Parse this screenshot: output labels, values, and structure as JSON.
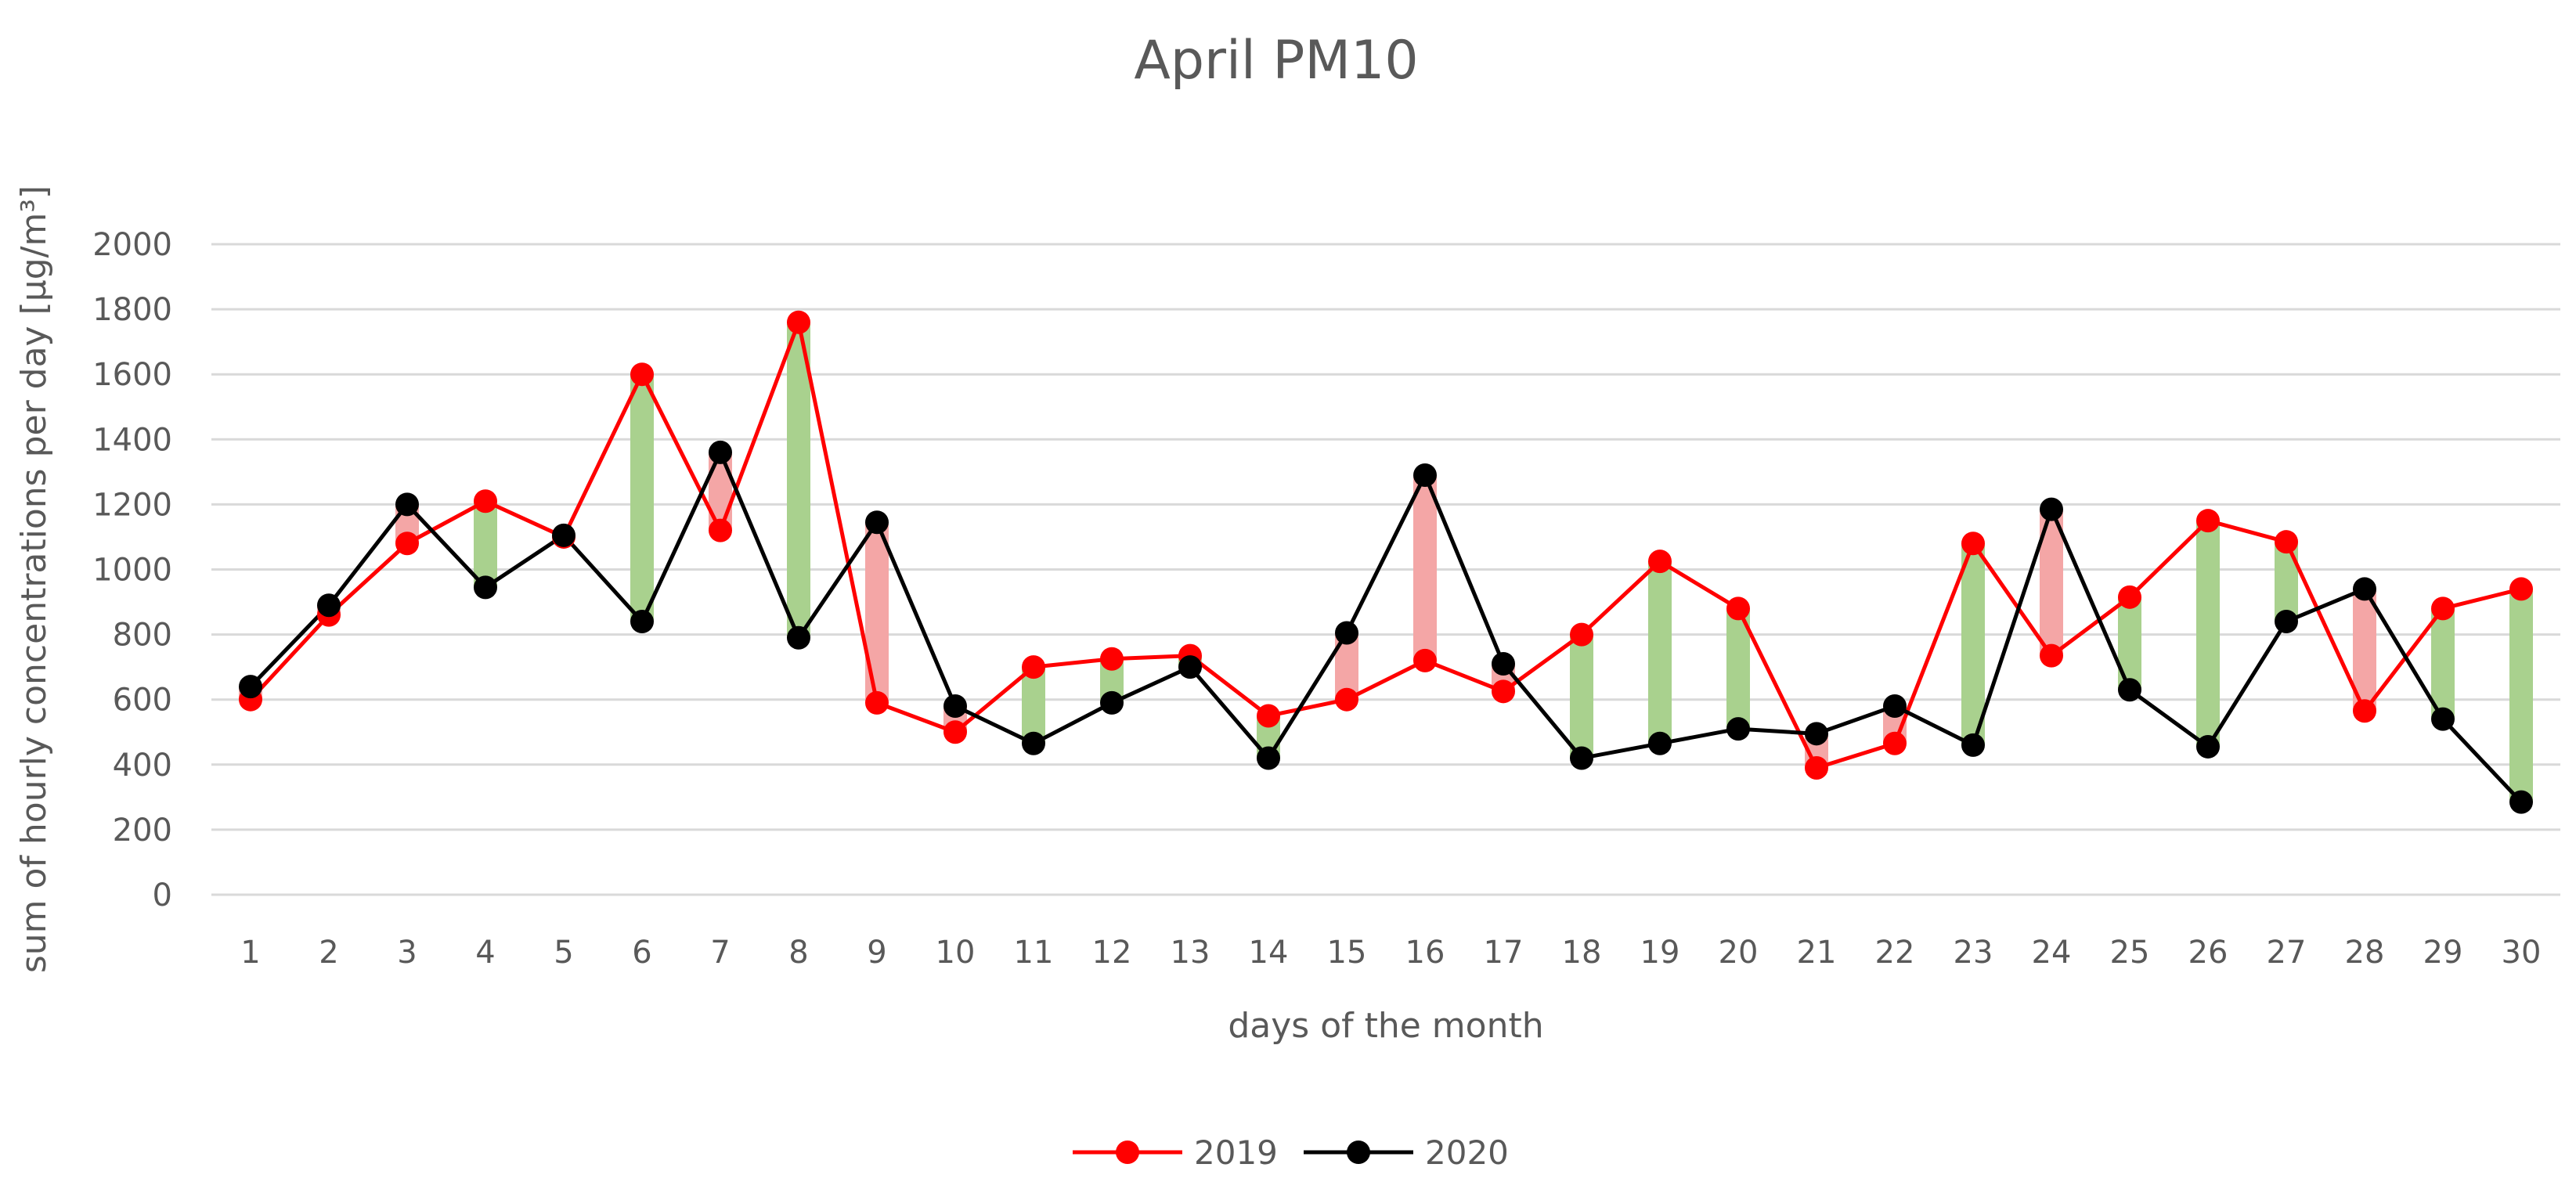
{
  "chart_data": {
    "type": "line",
    "title": "April PM10",
    "xlabel": "days of the month",
    "ylabel": "sum of hourly concentrations per day [µg/m³]",
    "x": [
      1,
      2,
      3,
      4,
      5,
      6,
      7,
      8,
      9,
      10,
      11,
      12,
      13,
      14,
      15,
      16,
      17,
      18,
      19,
      20,
      21,
      22,
      23,
      24,
      25,
      26,
      27,
      28,
      29,
      30
    ],
    "ylim": [
      0,
      2000
    ],
    "yticks": [
      0,
      200,
      400,
      600,
      800,
      1000,
      1200,
      1400,
      1600,
      1800,
      2000
    ],
    "grid": true,
    "legend_position": "bottom",
    "series": [
      {
        "name": "2019",
        "color": "#ff0000",
        "values": [
          600,
          860,
          1080,
          1210,
          1100,
          1600,
          1120,
          1760,
          590,
          500,
          700,
          725,
          735,
          550,
          600,
          720,
          625,
          800,
          1025,
          880,
          390,
          465,
          1080,
          735,
          915,
          1150,
          1085,
          565,
          880,
          940
        ]
      },
      {
        "name": "2020",
        "color": "#000000",
        "values": [
          640,
          890,
          1200,
          945,
          1105,
          840,
          1360,
          790,
          1145,
          580,
          465,
          590,
          700,
          420,
          805,
          1290,
          710,
          420,
          465,
          510,
          495,
          580,
          460,
          1185,
          630,
          455,
          840,
          940,
          540,
          285
        ]
      }
    ],
    "fill_colors": {
      "decrease": "#a9d18e",
      "increase": "#f4a6a6"
    }
  }
}
